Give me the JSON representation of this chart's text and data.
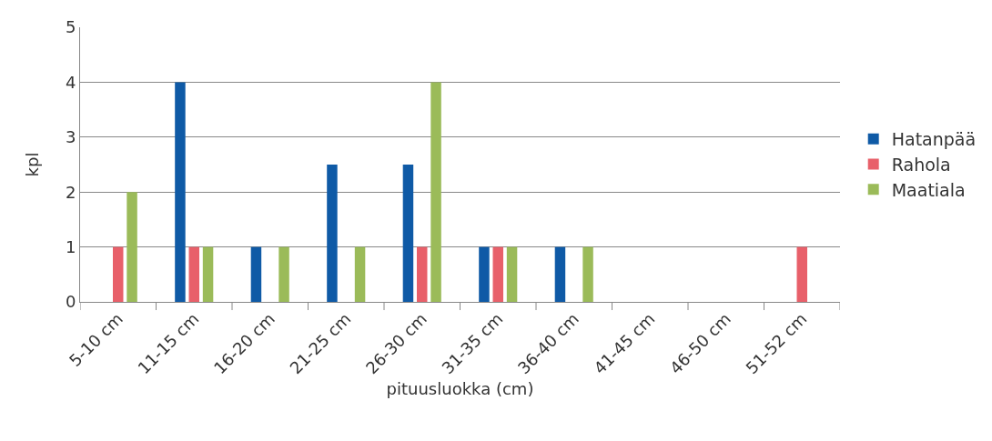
{
  "chart_data": {
    "type": "bar",
    "xlabel": "pituusluokka (cm)",
    "ylabel": "kpl",
    "categories": [
      "5-10 cm",
      "11-15 cm",
      "16-20 cm",
      "21-25 cm",
      "26-30 cm",
      "31-35 cm",
      "36-40 cm",
      "41-45 cm",
      "46-50 cm",
      "51-52 cm"
    ],
    "series": [
      {
        "name": "Hatanpää",
        "color": "#0f5aa6",
        "values": [
          0,
          4,
          1,
          2.5,
          2.5,
          1,
          1,
          0,
          0,
          0
        ]
      },
      {
        "name": "Rahola",
        "color": "#e8606a",
        "values": [
          1,
          1,
          0,
          0,
          1,
          1,
          0,
          0,
          0,
          1
        ]
      },
      {
        "name": "Maatiala",
        "color": "#9bbb59",
        "values": [
          2,
          1,
          1,
          1,
          4,
          1,
          1,
          0,
          0,
          0
        ]
      }
    ],
    "ylim": [
      0,
      5
    ],
    "yticks": [
      0,
      1,
      2,
      3,
      4,
      5
    ],
    "grid": "y",
    "legend": "right"
  }
}
